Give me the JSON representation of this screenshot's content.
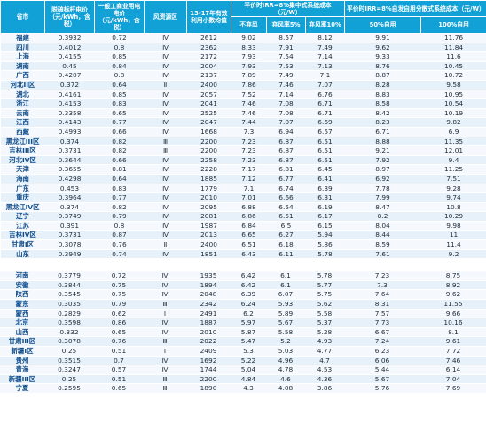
{
  "header": {
    "col_province": "省市",
    "col_coal_price": "脱硫标杆电价（元/kWh，含税）",
    "col_ci_price": "一般工商业用电电价（元/kWh，含税）",
    "col_resource": "风资源区",
    "col_hours": "13-17年有效利用小数均值",
    "group_centralized": "平价时IRR=8%集中式系统成本（元/W）",
    "group_distributed": "平价时IRR=8%自发自用分散式系统成本（元/W）",
    "sub_no_curtail": "不弃风",
    "sub_curtail5": "弃风率5%",
    "sub_curtail10": "弃风率10%",
    "sub_self50": "50%自用",
    "sub_self100": "100%自用"
  },
  "rows_top": [
    [
      "福建",
      "0.3932",
      "0.72",
      "Ⅳ",
      "2612",
      "9.02",
      "8.57",
      "8.12",
      "9.91",
      "11.76"
    ],
    [
      "四川",
      "0.4012",
      "0.8",
      "Ⅳ",
      "2362",
      "8.33",
      "7.91",
      "7.49",
      "9.62",
      "11.84"
    ],
    [
      "上海",
      "0.4155",
      "0.85",
      "Ⅳ",
      "2172",
      "7.93",
      "7.54",
      "7.14",
      "9.33",
      "11.6"
    ],
    [
      "湖南",
      "0.45",
      "0.84",
      "Ⅳ",
      "2004",
      "7.93",
      "7.53",
      "7.13",
      "8.76",
      "10.45"
    ],
    [
      "广西",
      "0.4207",
      "0.8",
      "Ⅳ",
      "2137",
      "7.89",
      "7.49",
      "7.1",
      "8.87",
      "10.72"
    ],
    [
      "河北II区",
      "0.372",
      "0.64",
      "Ⅱ",
      "2400",
      "7.86",
      "7.46",
      "7.07",
      "8.28",
      "9.58"
    ],
    [
      "湖北",
      "0.4161",
      "0.85",
      "Ⅳ",
      "2057",
      "7.52",
      "7.14",
      "6.76",
      "8.83",
      "10.95"
    ],
    [
      "浙江",
      "0.4153",
      "0.83",
      "Ⅳ",
      "2041",
      "7.46",
      "7.08",
      "6.71",
      "8.58",
      "10.54"
    ],
    [
      "云南",
      "0.3358",
      "0.65",
      "Ⅳ",
      "2525",
      "7.46",
      "7.08",
      "6.71",
      "8.42",
      "10.19"
    ],
    [
      "江西",
      "0.4143",
      "0.77",
      "Ⅳ",
      "2047",
      "7.44",
      "7.07",
      "6.69",
      "8.23",
      "9.82"
    ],
    [
      "西藏",
      "0.4993",
      "0.66",
      "Ⅳ",
      "1668",
      "7.3",
      "6.94",
      "6.57",
      "6.71",
      "6.9"
    ],
    [
      "黑龙江III区",
      "0.374",
      "0.82",
      "Ⅲ",
      "2200",
      "7.23",
      "6.87",
      "6.51",
      "8.88",
      "11.35"
    ],
    [
      "吉林III区",
      "0.3731",
      "0.82",
      "Ⅲ",
      "2200",
      "7.23",
      "6.87",
      "6.51",
      "9.21",
      "12.01"
    ],
    [
      "河北IV区",
      "0.3644",
      "0.66",
      "Ⅳ",
      "2258",
      "7.23",
      "6.87",
      "6.51",
      "7.92",
      "9.4"
    ],
    [
      "天津",
      "0.3655",
      "0.81",
      "Ⅳ",
      "2228",
      "7.17",
      "6.81",
      "6.45",
      "8.97",
      "11.25"
    ],
    [
      "海南",
      "0.4298",
      "0.64",
      "Ⅳ",
      "1885",
      "7.12",
      "6.77",
      "6.41",
      "6.92",
      "7.51"
    ],
    [
      "广东",
      "0.453",
      "0.83",
      "Ⅳ",
      "1779",
      "7.1",
      "6.74",
      "6.39",
      "7.78",
      "9.28"
    ],
    [
      "重庆",
      "0.3964",
      "0.77",
      "Ⅳ",
      "2010",
      "7.01",
      "6.66",
      "6.31",
      "7.99",
      "9.74"
    ],
    [
      "黑龙江IV区",
      "0.374",
      "0.82",
      "Ⅳ",
      "2095",
      "6.88",
      "6.54",
      "6.19",
      "8.47",
      "10.8"
    ],
    [
      "辽宁",
      "0.3749",
      "0.79",
      "Ⅳ",
      "2081",
      "6.86",
      "6.51",
      "6.17",
      "8.2",
      "10.29"
    ],
    [
      "江苏",
      "0.391",
      "0.8",
      "Ⅳ",
      "1987",
      "6.84",
      "6.5",
      "6.15",
      "8.04",
      "9.98"
    ],
    [
      "吉林IV区",
      "0.3731",
      "0.87",
      "Ⅳ",
      "2013",
      "6.65",
      "6.27",
      "5.94",
      "8.44",
      "11"
    ],
    [
      "甘肃I区",
      "0.3078",
      "0.76",
      "Ⅱ",
      "2400",
      "6.51",
      "6.18",
      "5.86",
      "8.59",
      "11.4"
    ],
    [
      "山东",
      "0.3949",
      "0.74",
      "Ⅳ",
      "1851",
      "6.43",
      "6.11",
      "5.78",
      "7.61",
      "9.2"
    ]
  ],
  "rows_bottom": [
    [
      "河南",
      "0.3779",
      "0.72",
      "Ⅳ",
      "1935",
      "6.42",
      "6.1",
      "5.78",
      "7.23",
      "8.75"
    ],
    [
      "安徽",
      "0.3844",
      "0.75",
      "Ⅳ",
      "1894",
      "6.42",
      "6.1",
      "5.77",
      "7.3",
      "8.92"
    ],
    [
      "陕西",
      "0.3545",
      "0.75",
      "Ⅳ",
      "2048",
      "6.39",
      "6.07",
      "5.75",
      "7.64",
      "9.62"
    ],
    [
      "蒙东",
      "0.3035",
      "0.79",
      "Ⅲ",
      "2342",
      "6.24",
      "5.93",
      "5.62",
      "8.31",
      "11.55"
    ],
    [
      "蒙西",
      "0.2829",
      "0.62",
      "Ⅰ",
      "2491",
      "6.2",
      "5.89",
      "5.58",
      "7.57",
      "9.66"
    ],
    [
      "北京",
      "0.3598",
      "0.86",
      "Ⅳ",
      "1887",
      "5.97",
      "5.67",
      "5.37",
      "7.73",
      "10.16"
    ],
    [
      "山西",
      "0.332",
      "0.65",
      "Ⅳ",
      "2010",
      "5.87",
      "5.58",
      "5.28",
      "6.67",
      "8.1"
    ],
    [
      "甘肃III区",
      "0.3078",
      "0.76",
      "Ⅲ",
      "2022",
      "5.47",
      "5.2",
      "4.93",
      "7.24",
      "9.61"
    ],
    [
      "新疆I区",
      "0.25",
      "0.51",
      "Ⅰ",
      "2409",
      "5.3",
      "5.03",
      "4.77",
      "6.23",
      "7.72"
    ],
    [
      "贵州",
      "0.3515",
      "0.7",
      "Ⅳ",
      "1692",
      "5.22",
      "4.96",
      "4.7",
      "6.06",
      "7.46"
    ],
    [
      "青海",
      "0.3247",
      "0.57",
      "Ⅳ",
      "1744",
      "5.04",
      "4.78",
      "4.53",
      "5.44",
      "6.14"
    ],
    [
      "新疆III区",
      "0.25",
      "0.51",
      "Ⅲ",
      "2200",
      "4.84",
      "4.6",
      "4.36",
      "5.67",
      "7.04"
    ],
    [
      "宁夏",
      "0.2595",
      "0.65",
      "Ⅲ",
      "1890",
      "4.3",
      "4.08",
      "3.86",
      "5.76",
      "7.69"
    ]
  ]
}
